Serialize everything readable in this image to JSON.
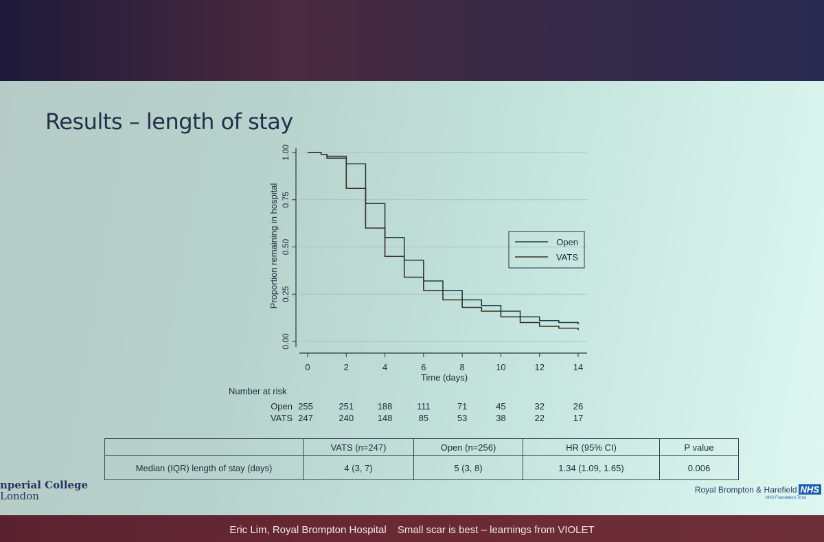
{
  "slide": {
    "title": "Results – length of stay",
    "footer_author": "Eric Lim, Royal Brompton Hospital",
    "footer_talk": "Small scar is best – learnings from VIOLET",
    "logo_left_line1": "nperial College",
    "logo_left_line2": "London",
    "logo_right_name": "Royal Brompton & Harefield",
    "logo_right_nhs": "NHS",
    "logo_right_trust": "NHS Foundation Trust"
  },
  "chart_data": {
    "type": "line",
    "title": "",
    "xlabel": "Time (days)",
    "ylabel": "Proportion remaining in hospital",
    "xlim": [
      0,
      14
    ],
    "ylim": [
      0,
      1
    ],
    "x_ticks": [
      "0",
      "2",
      "4",
      "6",
      "8",
      "10",
      "12",
      "14"
    ],
    "y_ticks": [
      "0.00",
      "0.25",
      "0.50",
      "0.75",
      "1.00"
    ],
    "grid": true,
    "legend_position": "right",
    "series": [
      {
        "name": "Open",
        "color": "#1f3f46",
        "steps": [
          [
            0,
            1.0
          ],
          [
            0.7,
            0.99
          ],
          [
            1,
            0.98
          ],
          [
            2,
            0.94
          ],
          [
            3,
            0.73
          ],
          [
            4,
            0.55
          ],
          [
            5,
            0.43
          ],
          [
            6,
            0.32
          ],
          [
            7,
            0.27
          ],
          [
            8,
            0.22
          ],
          [
            9,
            0.19
          ],
          [
            10,
            0.16
          ],
          [
            11,
            0.13
          ],
          [
            12,
            0.11
          ],
          [
            13,
            0.1
          ],
          [
            14,
            0.09
          ]
        ]
      },
      {
        "name": "VATS",
        "color": "#3a2f22",
        "steps": [
          [
            0,
            1.0
          ],
          [
            0.7,
            0.99
          ],
          [
            1,
            0.97
          ],
          [
            2,
            0.81
          ],
          [
            3,
            0.6
          ],
          [
            4,
            0.45
          ],
          [
            5,
            0.34
          ],
          [
            6,
            0.27
          ],
          [
            7,
            0.22
          ],
          [
            8,
            0.18
          ],
          [
            9,
            0.16
          ],
          [
            10,
            0.13
          ],
          [
            11,
            0.1
          ],
          [
            12,
            0.08
          ],
          [
            13,
            0.07
          ],
          [
            14,
            0.06
          ]
        ]
      }
    ],
    "risk_table": {
      "title": "Number at risk",
      "rows": [
        {
          "label": "Open",
          "values": [
            "255",
            "251",
            "188",
            "111",
            "71",
            "45",
            "32",
            "26"
          ]
        },
        {
          "label": "VATS",
          "values": [
            "247",
            "240",
            "148",
            "85",
            "53",
            "38",
            "22",
            "17"
          ]
        }
      ]
    }
  },
  "results_table": {
    "headers": [
      "",
      "VATS (n=247)",
      "Open (n=256)",
      "HR (95% CI)",
      "P value"
    ],
    "row": [
      "Median (IQR) length of stay (days)",
      "4 (3, 7)",
      "5 (3, 8)",
      "1.34 (1.09, 1.65)",
      "0.006"
    ]
  }
}
